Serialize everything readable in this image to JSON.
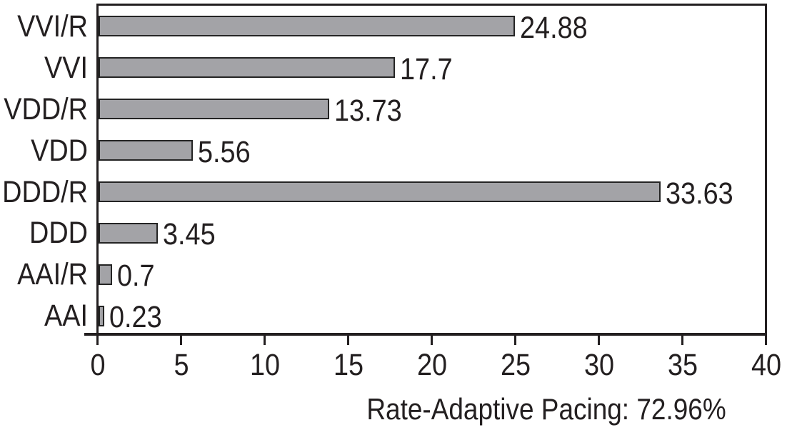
{
  "chart_data": {
    "type": "bar",
    "orientation": "horizontal",
    "title": "",
    "xlabel": "",
    "ylabel": "",
    "categories": [
      "VVI/R",
      "VVI",
      "VDD/R",
      "VDD",
      "DDD/R",
      "DDD",
      "AAI/R",
      "AAI"
    ],
    "values": [
      24.88,
      17.7,
      13.73,
      5.56,
      33.63,
      3.45,
      0.7,
      0.23
    ],
    "value_labels": [
      "24.88",
      "17.7",
      "13.73",
      "5.56",
      "33.63",
      "3.45",
      "0.7",
      "0.23"
    ],
    "x_ticks": [
      0,
      5,
      10,
      15,
      20,
      25,
      30,
      35,
      40
    ],
    "x_tick_labels": [
      "0",
      "5",
      "10",
      "15",
      "20",
      "25",
      "30",
      "35",
      "40"
    ],
    "xlim": [
      0,
      40
    ],
    "grid": false,
    "legend": "none",
    "caption": "Rate-Adaptive Pacing: 72.96%",
    "colors": {
      "bar_fill": "#a3a3a7",
      "bar_border": "#242424",
      "axis": "#231f20",
      "text": "#231f20",
      "background": "#ffffff"
    }
  }
}
